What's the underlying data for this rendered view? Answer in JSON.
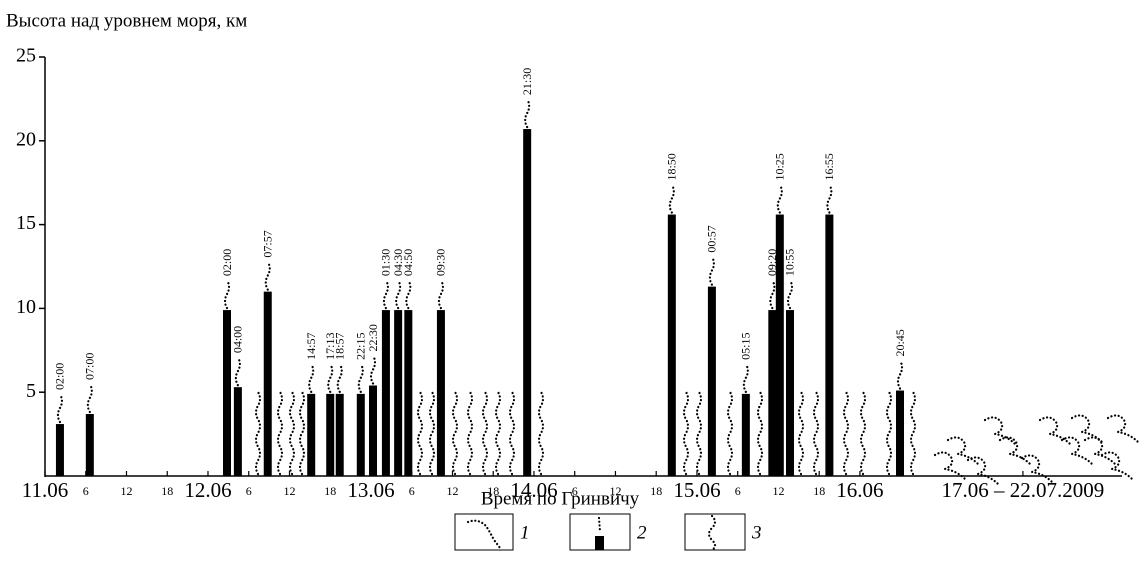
{
  "chart_data": {
    "type": "bar",
    "y_label": "Высота над уровнем моря, км",
    "x_label": "Время по Гринвичу",
    "x": [
      2.2,
      6.6,
      26.8,
      28.4,
      32.8,
      39.2,
      42.0,
      43.4,
      46.5,
      48.3,
      50.2,
      52.0,
      53.5,
      58.3,
      71.0,
      92.3,
      98.2,
      103.2,
      107.1,
      108.2,
      109.7,
      115.5,
      125.9
    ],
    "values": [
      3.1,
      3.7,
      9.9,
      5.3,
      11.0,
      4.9,
      4.9,
      4.9,
      4.9,
      5.4,
      9.9,
      9.9,
      9.9,
      9.9,
      20.7,
      15.6,
      11.3,
      4.9,
      9.9,
      15.6,
      9.9,
      15.6,
      5.1
    ],
    "time_labels": [
      "02:00",
      "07:00",
      "02:00",
      "04:00",
      "07:57",
      "14:57",
      "17:13",
      "18:57",
      "22:15",
      "22:30",
      "01:30",
      "04:30",
      "04:50",
      "09:30",
      "21:30",
      "18:50",
      "00:57",
      "05:15",
      "09:20",
      "10:25",
      "10:55",
      "16:55",
      "20:45"
    ],
    "color": "#000000",
    "xlim": [
      0,
      158
    ],
    "ylim": [
      0,
      25
    ],
    "yticks": [
      5,
      10,
      15,
      20,
      25
    ],
    "xticks": [
      {
        "value": 0,
        "label": "11.06"
      },
      6,
      12,
      18,
      {
        "value": 24,
        "label": "12.06"
      },
      {
        "value": 30,
        "label": "6"
      },
      {
        "value": 36,
        "label": "12"
      },
      {
        "value": 42,
        "label": "18"
      },
      {
        "value": 48,
        "label": "13.06"
      },
      {
        "value": 54,
        "label": "6"
      },
      {
        "value": 60,
        "label": "12"
      },
      {
        "value": 66,
        "label": "18"
      },
      {
        "value": 72,
        "label": "14.06"
      },
      {
        "value": 78,
        "label": "6"
      },
      {
        "value": 84,
        "label": "12"
      },
      {
        "value": 90,
        "label": "18"
      },
      {
        "value": 96,
        "label": "15.06"
      },
      {
        "value": 102,
        "label": "6"
      },
      {
        "value": 108,
        "label": "12"
      },
      {
        "value": 114,
        "label": "18"
      },
      {
        "value": 120,
        "label": "16.06"
      },
      {
        "value": 144,
        "label": "17.06 – 22.07.2009"
      }
    ],
    "legend_labels": [
      "1",
      "2",
      "3"
    ]
  }
}
